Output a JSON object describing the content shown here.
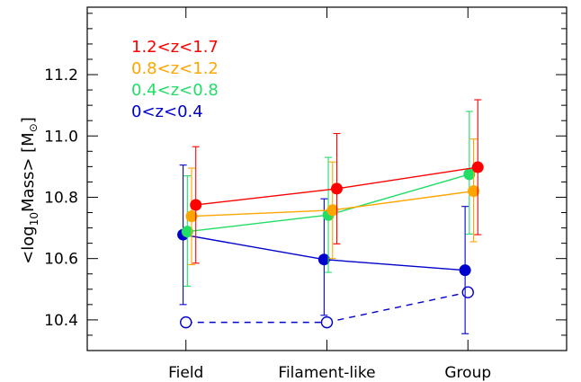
{
  "chart_data": {
    "type": "scatter",
    "title": "",
    "xlabel": "",
    "ylabel_parts": {
      "pre": "<log",
      "sub": "10",
      "post": "Mass> [M",
      "symbol": "⊙",
      "end": "]"
    },
    "categories": [
      "Field",
      "Filament-like",
      "Group"
    ],
    "x_positions": [
      1,
      2,
      3
    ],
    "xlim": [
      0.3,
      3.7
    ],
    "ylim": [
      10.3,
      11.42
    ],
    "yticks": [
      10.4,
      10.6,
      10.8,
      11.0,
      11.2
    ],
    "ytick_labels": [
      "10.4",
      "10.6",
      "10.8",
      "11.0",
      "11.2"
    ],
    "minor_step": 0.05,
    "grid": false,
    "legend_position": "top-left",
    "series": [
      {
        "name": "1.2<z<1.7",
        "color": "#ff0000",
        "x": [
          1.07,
          2.07,
          3.07
        ],
        "values": [
          10.775,
          10.828,
          10.898
        ],
        "err_low": [
          10.585,
          10.648,
          10.678
        ],
        "err_high": [
          10.965,
          11.008,
          11.118
        ],
        "marker": "filled",
        "line": "solid"
      },
      {
        "name": "0.8<z<1.2",
        "color": "#ffa500",
        "x": [
          1.04,
          2.04,
          3.04
        ],
        "values": [
          10.738,
          10.758,
          10.82
        ],
        "err_low": [
          10.58,
          10.6,
          10.655
        ],
        "err_high": [
          10.895,
          10.915,
          10.99
        ],
        "marker": "filled",
        "line": "solid"
      },
      {
        "name": "0.4<z<0.8",
        "color": "#22dd66",
        "x": [
          1.01,
          2.01,
          3.01
        ],
        "values": [
          10.688,
          10.742,
          10.875
        ],
        "err_low": [
          10.51,
          10.555,
          10.68
        ],
        "err_high": [
          10.87,
          10.93,
          11.08
        ],
        "marker": "filled",
        "line": "solid"
      },
      {
        "name": "0<z<0.4",
        "color": "#0000cc",
        "x": [
          0.98,
          1.98,
          2.98
        ],
        "values": [
          10.678,
          10.597,
          10.562
        ],
        "err_low": [
          10.45,
          10.415,
          10.355
        ],
        "err_high": [
          10.905,
          10.795,
          10.77
        ],
        "marker": "filled",
        "line": "solid"
      },
      {
        "color": "#0000cc",
        "x": [
          1.0,
          2.0,
          3.0
        ],
        "values": [
          10.392,
          10.392,
          10.49
        ],
        "marker": "open",
        "line": "dashed"
      }
    ]
  }
}
